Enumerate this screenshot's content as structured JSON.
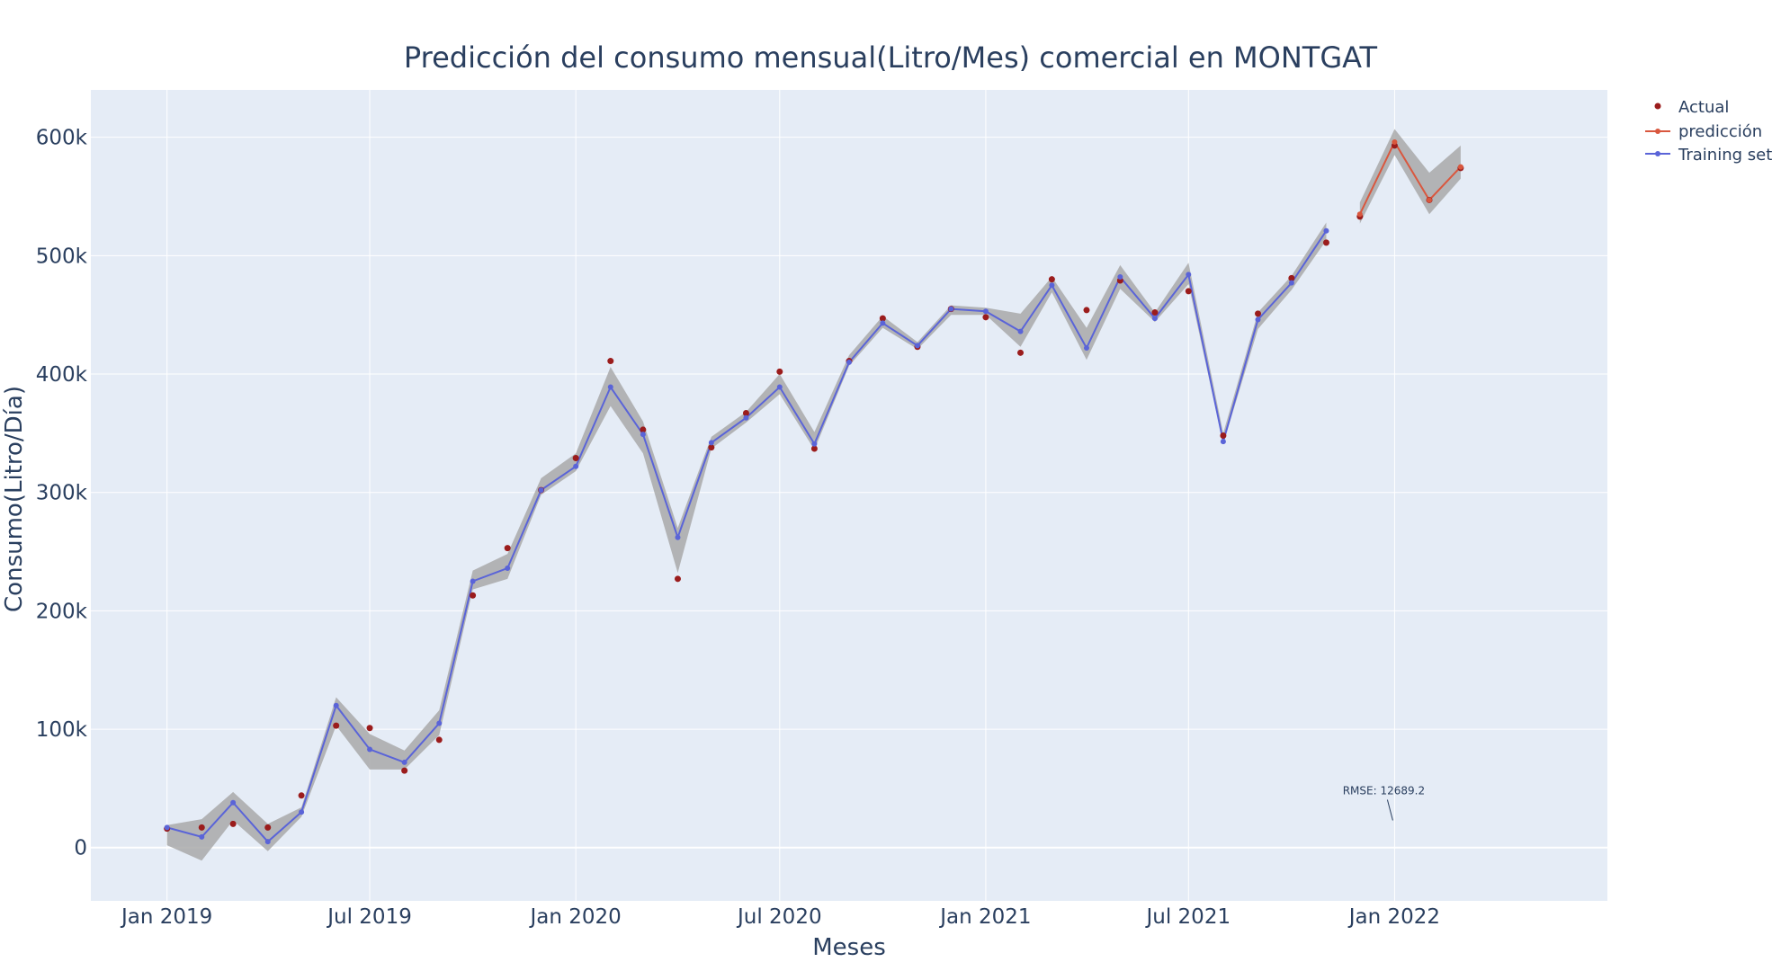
{
  "chart_data": {
    "type": "line",
    "title": "Predicción del consumo mensual(Litro/Mes) comercial en MONTGAT",
    "xlabel": "Meses",
    "ylabel": "Consumo(Litro/Día)",
    "x_ticks": [
      "2019-01-01",
      "2019-07-01",
      "2020-01-01",
      "2020-07-01",
      "2021-01-01",
      "2021-07-01",
      "2022-01-01"
    ],
    "x_tick_labels": [
      "Jan 2019",
      "Jul 2019",
      "Jan 2020",
      "Jul 2020",
      "Jan 2021",
      "Jul 2021",
      "Jan 2022"
    ],
    "xlim": [
      "2018-10-25",
      "2022-07-10"
    ],
    "y_ticks": [
      0,
      100000,
      200000,
      300000,
      400000,
      500000,
      600000
    ],
    "y_tick_labels": [
      "0",
      "100k",
      "200k",
      "300k",
      "400k",
      "500k",
      "600k"
    ],
    "ylim": [
      -45000,
      640000
    ],
    "grid": true,
    "legend_position": "top-right",
    "legend": [
      "Actual",
      "predicción",
      "Training set"
    ],
    "colors": {
      "plot_bg": "#e5ecf6",
      "grid": "#ffffff",
      "actual": "#9b1c1c",
      "prediccion": "#d9573e",
      "training": "#5a64d8",
      "band": "#a9a9a9",
      "text": "#2a3f5f"
    },
    "annotation": {
      "text": "RMSE: 12689.2",
      "x": "2022-01-01",
      "y": 23000
    },
    "series": [
      {
        "name": "Actual",
        "mode": "markers",
        "x": [
          "2019-01-01",
          "2019-02-01",
          "2019-03-01",
          "2019-04-01",
          "2019-05-01",
          "2019-06-01",
          "2019-07-01",
          "2019-08-01",
          "2019-09-01",
          "2019-10-01",
          "2019-11-01",
          "2019-12-01",
          "2020-01-01",
          "2020-02-01",
          "2020-03-01",
          "2020-04-01",
          "2020-05-01",
          "2020-06-01",
          "2020-07-01",
          "2020-08-01",
          "2020-09-01",
          "2020-10-01",
          "2020-11-01",
          "2020-12-01",
          "2021-01-01",
          "2021-02-01",
          "2021-03-01",
          "2021-04-01",
          "2021-05-01",
          "2021-06-01",
          "2021-07-01",
          "2021-08-01",
          "2021-09-01",
          "2021-10-01",
          "2021-11-01",
          "2021-12-01",
          "2022-01-01",
          "2022-02-01",
          "2022-03-01"
        ],
        "y": [
          16000,
          17000,
          20000,
          17000,
          44000,
          103000,
          101000,
          65000,
          91000,
          213000,
          253000,
          302000,
          329000,
          411000,
          353000,
          227000,
          338000,
          367000,
          402000,
          337000,
          411000,
          447000,
          423000,
          455000,
          448000,
          418000,
          480000,
          454000,
          479000,
          452000,
          470000,
          348000,
          451000,
          481000,
          511000,
          533000,
          593000,
          547000,
          574000
        ]
      },
      {
        "name": "predicción",
        "mode": "lines+markers",
        "x": [
          "2021-12-01",
          "2022-01-01",
          "2022-02-01",
          "2022-03-01"
        ],
        "y": [
          535000,
          596000,
          547000,
          575000
        ],
        "band_upper": [
          545000,
          607000,
          570000,
          593000
        ],
        "band_lower": [
          527000,
          585000,
          535000,
          565000
        ]
      },
      {
        "name": "Training set",
        "mode": "lines+markers",
        "x": [
          "2019-01-01",
          "2019-02-01",
          "2019-03-01",
          "2019-04-01",
          "2019-05-01",
          "2019-06-01",
          "2019-07-01",
          "2019-08-01",
          "2019-09-01",
          "2019-10-01",
          "2019-11-01",
          "2019-12-01",
          "2020-01-01",
          "2020-02-01",
          "2020-03-01",
          "2020-04-01",
          "2020-05-01",
          "2020-06-01",
          "2020-07-01",
          "2020-08-01",
          "2020-09-01",
          "2020-10-01",
          "2020-11-01",
          "2020-12-01",
          "2021-01-01",
          "2021-02-01",
          "2021-03-01",
          "2021-04-01",
          "2021-05-01",
          "2021-06-01",
          "2021-07-01",
          "2021-08-01",
          "2021-09-01",
          "2021-10-01",
          "2021-11-01"
        ],
        "y": [
          17000,
          9000,
          38000,
          5000,
          30000,
          120000,
          83000,
          72000,
          105000,
          225000,
          236000,
          302000,
          322000,
          389000,
          349000,
          262000,
          342000,
          363000,
          389000,
          341000,
          410000,
          443000,
          424000,
          455000,
          453000,
          436000,
          475000,
          422000,
          482000,
          447000,
          484000,
          343000,
          446000,
          477000,
          521000
        ],
        "band_upper": [
          19000,
          24000,
          47000,
          20000,
          34000,
          127000,
          96000,
          82000,
          116000,
          234000,
          248000,
          312000,
          333000,
          406000,
          360000,
          270000,
          347000,
          368000,
          400000,
          351000,
          416000,
          449000,
          427000,
          458000,
          456000,
          451000,
          482000,
          439000,
          492000,
          452000,
          494000,
          350000,
          452000,
          483000,
          528000
        ],
        "band_lower": [
          2000,
          -11000,
          23000,
          -3000,
          26000,
          103000,
          66000,
          66000,
          95000,
          218000,
          227000,
          298000,
          318000,
          373000,
          333000,
          232000,
          337000,
          359000,
          383000,
          336000,
          407000,
          439000,
          421000,
          450000,
          450000,
          423000,
          469000,
          412000,
          472000,
          444000,
          476000,
          341000,
          438000,
          471000,
          513000
        ]
      }
    ]
  }
}
